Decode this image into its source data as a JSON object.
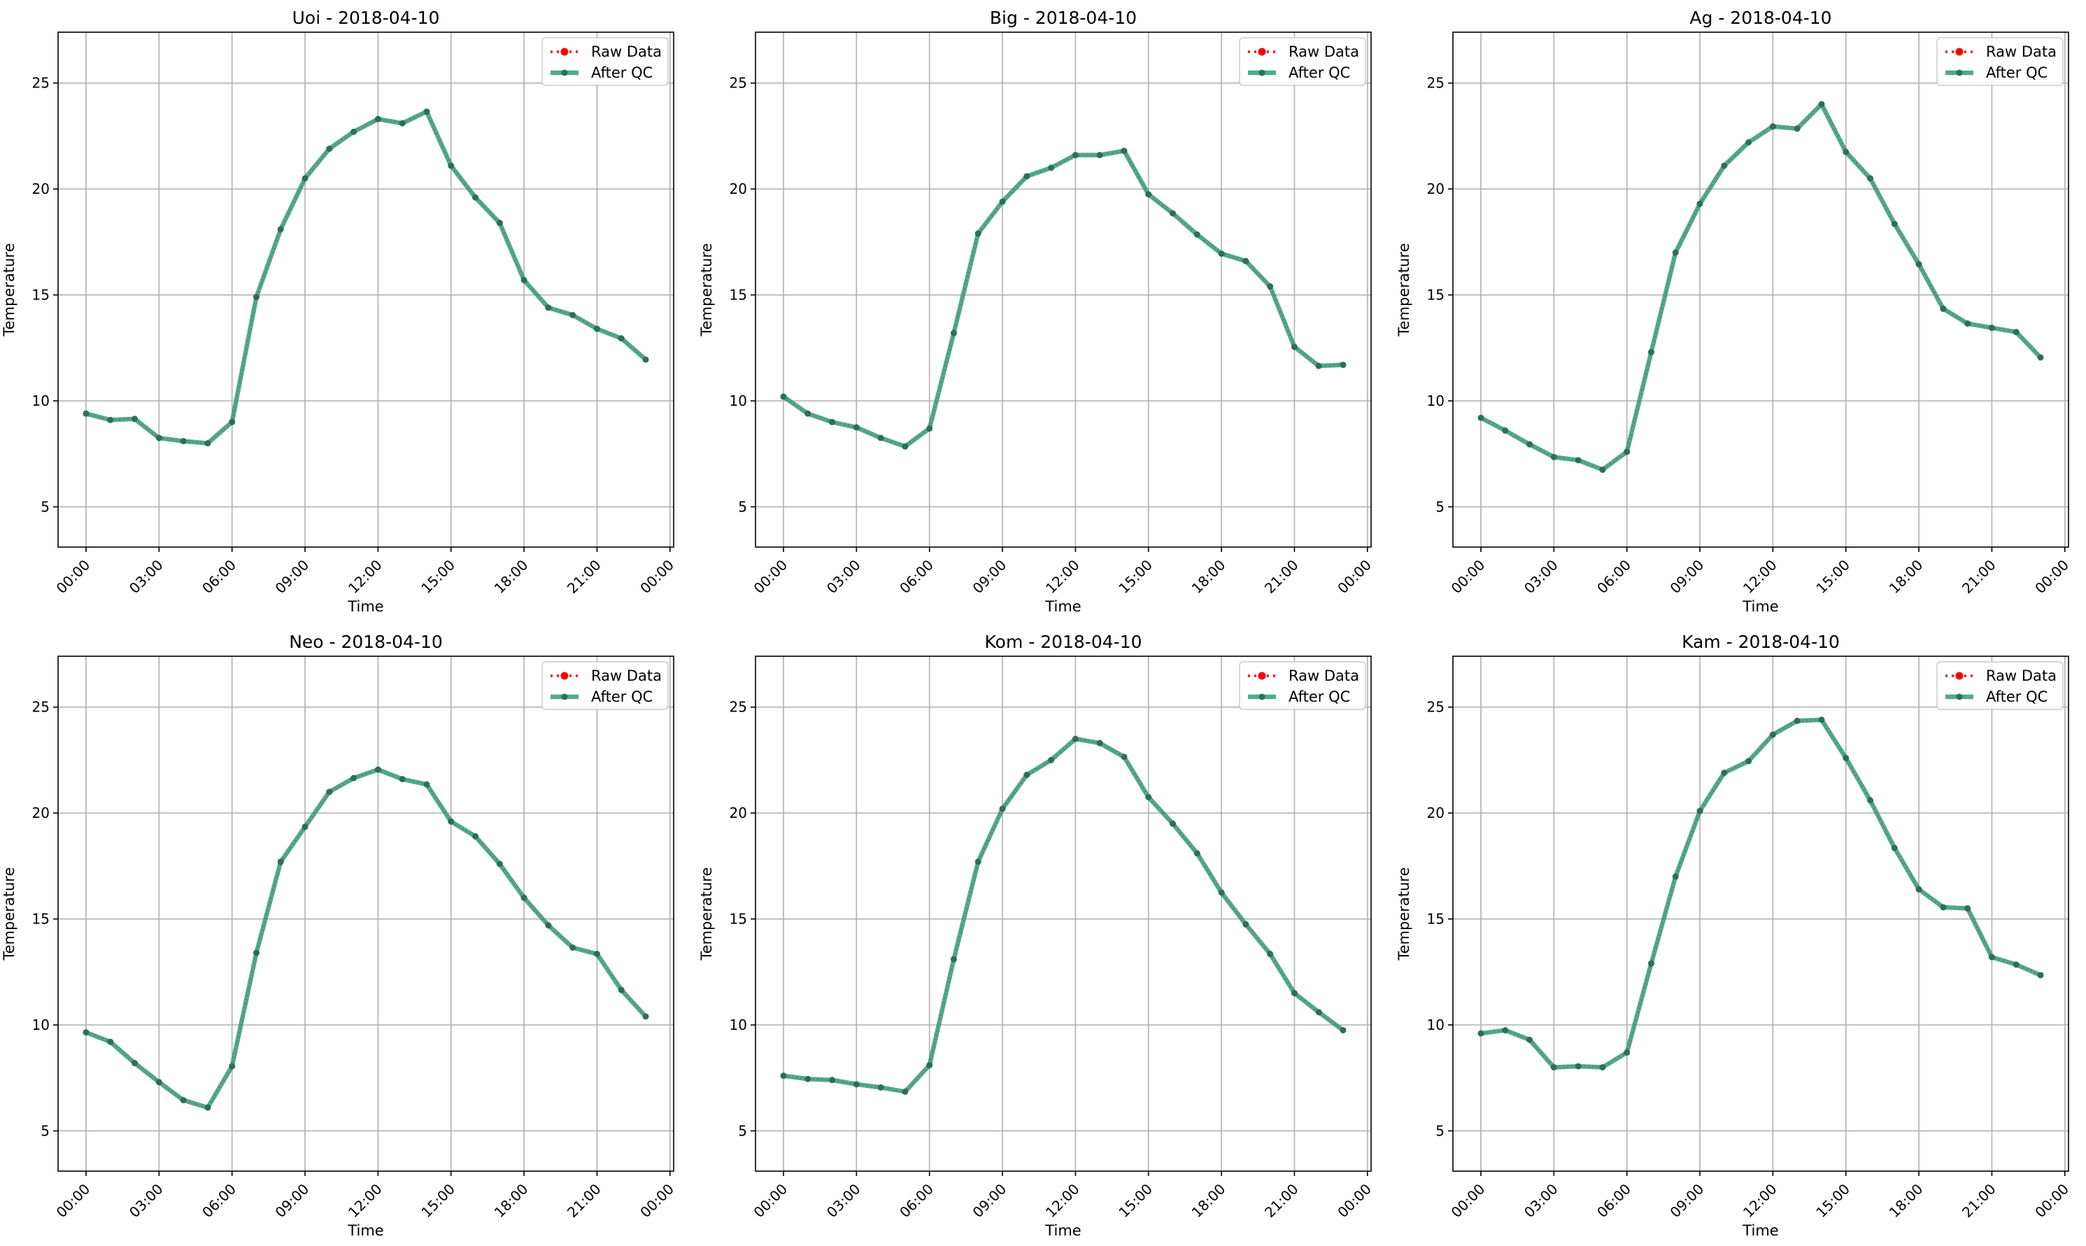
{
  "colors": {
    "raw": "#ff0000",
    "qc": "#2e9c7a",
    "qc_marker": "#2d6e5a",
    "grid": "#b0b0b0",
    "axis": "#000000"
  },
  "chart_data": [
    {
      "type": "line",
      "title": "Uoi - 2018-04-10",
      "xlabel": "Time",
      "ylabel": "Temperature",
      "x_ticks": [
        "00:00",
        "03:00",
        "06:00",
        "09:00",
        "12:00",
        "15:00",
        "18:00",
        "21:00",
        "00:00"
      ],
      "y_ticks": [
        5,
        10,
        15,
        20,
        25
      ],
      "ylim": [
        3.1,
        27.4
      ],
      "xlim_hours": [
        -1.15,
        24.15
      ],
      "grid": true,
      "legend_position": "top-right",
      "x_hours": [
        0,
        1,
        2,
        3,
        4,
        5,
        6,
        7,
        8,
        9,
        10,
        11,
        12,
        13,
        14,
        15,
        16,
        17,
        18,
        19,
        20,
        21,
        22,
        23
      ],
      "series": [
        {
          "name": "Raw Data",
          "values": [
            9.4,
            9.1,
            9.15,
            8.25,
            8.1,
            8.0,
            9.0,
            14.9,
            18.1,
            20.5,
            21.9,
            22.7,
            23.3,
            23.1,
            23.65,
            21.1,
            19.6,
            18.4,
            15.7,
            14.4,
            14.05,
            13.4,
            12.95,
            11.95
          ]
        },
        {
          "name": "After QC",
          "values": [
            9.4,
            9.1,
            9.15,
            8.25,
            8.1,
            8.0,
            9.0,
            14.9,
            18.1,
            20.5,
            21.9,
            22.7,
            23.3,
            23.1,
            23.65,
            21.1,
            19.6,
            18.4,
            15.7,
            14.4,
            14.05,
            13.4,
            12.95,
            11.95
          ]
        }
      ]
    },
    {
      "type": "line",
      "title": "Big - 2018-04-10",
      "xlabel": "Time",
      "ylabel": "Temperature",
      "x_ticks": [
        "00:00",
        "03:00",
        "06:00",
        "09:00",
        "12:00",
        "15:00",
        "18:00",
        "21:00",
        "00:00"
      ],
      "y_ticks": [
        5,
        10,
        15,
        20,
        25
      ],
      "ylim": [
        3.1,
        27.4
      ],
      "xlim_hours": [
        -1.15,
        24.15
      ],
      "grid": true,
      "legend_position": "top-right",
      "x_hours": [
        0,
        1,
        2,
        3,
        4,
        5,
        6,
        7,
        8,
        9,
        10,
        11,
        12,
        13,
        14,
        15,
        16,
        17,
        18,
        19,
        20,
        21,
        22,
        23
      ],
      "series": [
        {
          "name": "Raw Data",
          "values": [
            10.2,
            9.4,
            9.0,
            8.75,
            8.25,
            7.85,
            8.7,
            13.2,
            17.9,
            19.4,
            20.6,
            21.0,
            21.6,
            21.6,
            21.8,
            19.75,
            18.85,
            17.85,
            16.95,
            16.6,
            15.4,
            12.55,
            11.65,
            11.7
          ]
        },
        {
          "name": "After QC",
          "values": [
            10.2,
            9.4,
            9.0,
            8.75,
            8.25,
            7.85,
            8.7,
            13.2,
            17.9,
            19.4,
            20.6,
            21.0,
            21.6,
            21.6,
            21.8,
            19.75,
            18.85,
            17.85,
            16.95,
            16.6,
            15.4,
            12.55,
            11.65,
            11.7
          ]
        }
      ]
    },
    {
      "type": "line",
      "title": "Ag - 2018-04-10",
      "xlabel": "Time",
      "ylabel": "Temperature",
      "x_ticks": [
        "00:00",
        "03:00",
        "06:00",
        "09:00",
        "12:00",
        "15:00",
        "18:00",
        "21:00",
        "00:00"
      ],
      "y_ticks": [
        5,
        10,
        15,
        20,
        25
      ],
      "ylim": [
        3.1,
        27.4
      ],
      "xlim_hours": [
        -1.15,
        24.15
      ],
      "grid": true,
      "legend_position": "top-right",
      "x_hours": [
        0,
        1,
        2,
        3,
        4,
        5,
        6,
        7,
        8,
        9,
        10,
        11,
        12,
        13,
        14,
        15,
        16,
        17,
        18,
        19,
        20,
        21,
        22,
        23
      ],
      "series": [
        {
          "name": "Raw Data",
          "values": [
            9.2,
            8.6,
            7.95,
            7.35,
            7.2,
            6.75,
            7.6,
            12.3,
            17.0,
            19.3,
            21.1,
            22.2,
            22.95,
            22.85,
            24.0,
            21.75,
            20.5,
            18.35,
            16.45,
            14.35,
            13.65,
            13.45,
            13.25,
            12.05
          ]
        },
        {
          "name": "After QC",
          "values": [
            9.2,
            8.6,
            7.95,
            7.35,
            7.2,
            6.75,
            7.6,
            12.3,
            17.0,
            19.3,
            21.1,
            22.2,
            22.95,
            22.85,
            24.0,
            21.75,
            20.5,
            18.35,
            16.45,
            14.35,
            13.65,
            13.45,
            13.25,
            12.05
          ]
        }
      ]
    },
    {
      "type": "line",
      "title": "Neo - 2018-04-10",
      "xlabel": "Time",
      "ylabel": "Temperature",
      "x_ticks": [
        "00:00",
        "03:00",
        "06:00",
        "09:00",
        "12:00",
        "15:00",
        "18:00",
        "21:00",
        "00:00"
      ],
      "y_ticks": [
        5,
        10,
        15,
        20,
        25
      ],
      "ylim": [
        3.1,
        27.4
      ],
      "xlim_hours": [
        -1.15,
        24.15
      ],
      "grid": true,
      "legend_position": "top-right",
      "x_hours": [
        0,
        1,
        2,
        3,
        4,
        5,
        6,
        7,
        8,
        9,
        10,
        11,
        12,
        13,
        14,
        15,
        16,
        17,
        18,
        19,
        20,
        21,
        22,
        23
      ],
      "series": [
        {
          "name": "Raw Data",
          "values": [
            9.65,
            9.2,
            8.2,
            7.3,
            6.45,
            6.1,
            8.05,
            13.4,
            17.7,
            19.35,
            21.0,
            21.65,
            22.05,
            21.6,
            21.35,
            19.6,
            18.9,
            17.6,
            16.0,
            14.7,
            13.65,
            13.35,
            11.65,
            10.4
          ]
        },
        {
          "name": "After QC",
          "values": [
            9.65,
            9.2,
            8.2,
            7.3,
            6.45,
            6.1,
            8.05,
            13.4,
            17.7,
            19.35,
            21.0,
            21.65,
            22.05,
            21.6,
            21.35,
            19.6,
            18.9,
            17.6,
            16.0,
            14.7,
            13.65,
            13.35,
            11.65,
            10.4
          ]
        }
      ]
    },
    {
      "type": "line",
      "title": "Kom - 2018-04-10",
      "xlabel": "Time",
      "ylabel": "Temperature",
      "x_ticks": [
        "00:00",
        "03:00",
        "06:00",
        "09:00",
        "12:00",
        "15:00",
        "18:00",
        "21:00",
        "00:00"
      ],
      "y_ticks": [
        5,
        10,
        15,
        20,
        25
      ],
      "ylim": [
        3.1,
        27.4
      ],
      "xlim_hours": [
        -1.15,
        24.15
      ],
      "grid": true,
      "legend_position": "top-right",
      "x_hours": [
        0,
        1,
        2,
        3,
        4,
        5,
        6,
        7,
        8,
        9,
        10,
        11,
        12,
        13,
        14,
        15,
        16,
        17,
        18,
        19,
        20,
        21,
        22,
        23
      ],
      "series": [
        {
          "name": "Raw Data",
          "values": [
            7.6,
            7.45,
            7.4,
            7.2,
            7.05,
            6.85,
            8.1,
            13.1,
            17.7,
            20.2,
            21.8,
            22.5,
            23.5,
            23.3,
            22.65,
            20.75,
            19.5,
            18.1,
            16.25,
            14.75,
            13.35,
            11.5,
            10.6,
            9.75
          ]
        },
        {
          "name": "After QC",
          "values": [
            7.6,
            7.45,
            7.4,
            7.2,
            7.05,
            6.85,
            8.1,
            13.1,
            17.7,
            20.2,
            21.8,
            22.5,
            23.5,
            23.3,
            22.65,
            20.75,
            19.5,
            18.1,
            16.25,
            14.75,
            13.35,
            11.5,
            10.6,
            9.75
          ]
        }
      ]
    },
    {
      "type": "line",
      "title": "Kam - 2018-04-10",
      "xlabel": "Time",
      "ylabel": "Temperature",
      "x_ticks": [
        "00:00",
        "03:00",
        "06:00",
        "09:00",
        "12:00",
        "15:00",
        "18:00",
        "21:00",
        "00:00"
      ],
      "y_ticks": [
        5,
        10,
        15,
        20,
        25
      ],
      "ylim": [
        3.1,
        27.4
      ],
      "xlim_hours": [
        -1.15,
        24.15
      ],
      "grid": true,
      "legend_position": "top-right",
      "x_hours": [
        0,
        1,
        2,
        3,
        4,
        5,
        6,
        7,
        8,
        9,
        10,
        11,
        12,
        13,
        14,
        15,
        16,
        17,
        18,
        19,
        20,
        21,
        22,
        23
      ],
      "series": [
        {
          "name": "Raw Data",
          "values": [
            9.6,
            9.75,
            9.3,
            8.0,
            8.05,
            8.0,
            8.7,
            12.9,
            17.0,
            20.1,
            21.9,
            22.45,
            23.7,
            24.35,
            24.4,
            22.6,
            20.6,
            18.35,
            16.4,
            15.55,
            15.5,
            13.2,
            12.85,
            12.35
          ]
        },
        {
          "name": "After QC",
          "values": [
            9.6,
            9.75,
            9.3,
            8.0,
            8.05,
            8.0,
            8.7,
            12.9,
            17.0,
            20.1,
            21.9,
            22.45,
            23.7,
            24.35,
            24.4,
            22.6,
            20.6,
            18.35,
            16.4,
            15.55,
            15.5,
            13.2,
            12.85,
            12.35
          ]
        }
      ]
    }
  ]
}
